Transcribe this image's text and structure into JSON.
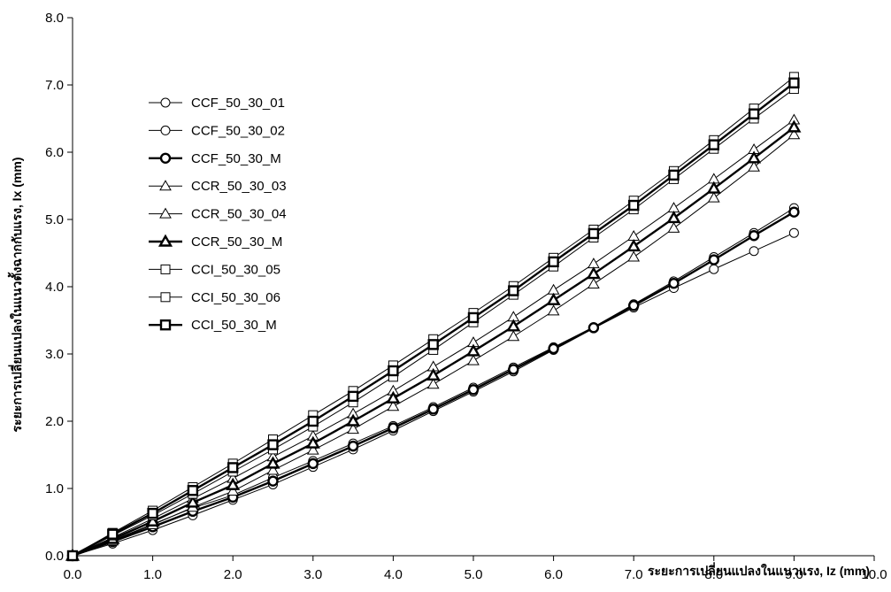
{
  "chart_data": {
    "type": "line",
    "title": "",
    "xlabel": "ระยะการเปลี่ยนแปลงในแนวแรง, Iz  (mm)",
    "ylabel": "ระยะการเปลี่ยนแปลงในแนวตั้งฉากกับแรง, Ix  (mm)",
    "xlim": [
      0,
      10
    ],
    "ylim": [
      0,
      8
    ],
    "x_ticks": [
      "0.0",
      "1.0",
      "2.0",
      "3.0",
      "4.0",
      "5.0",
      "6.0",
      "7.0",
      "8.0",
      "9.0",
      "10.0"
    ],
    "y_ticks": [
      "0.0",
      "1.0",
      "2.0",
      "3.0",
      "4.0",
      "5.0",
      "6.0",
      "7.0",
      "8.0"
    ],
    "grid": false,
    "legend_position": "upper-left",
    "x": [
      0,
      0.5,
      1.0,
      1.5,
      2.0,
      2.5,
      3.0,
      3.5,
      4.0,
      4.5,
      5.0,
      5.5,
      6.0,
      6.5,
      7.0,
      7.5,
      8.0,
      8.5,
      9.0
    ],
    "series": [
      {
        "name": "CCF_50_30_01",
        "marker": "circle",
        "bold": false,
        "values": [
          0,
          0.18,
          0.38,
          0.6,
          0.83,
          1.06,
          1.32,
          1.58,
          1.86,
          2.15,
          2.44,
          2.74,
          3.06,
          3.38,
          3.69,
          3.98,
          4.26,
          4.53,
          4.8
        ]
      },
      {
        "name": "CCF_50_30_02",
        "marker": "circle",
        "bold": false,
        "values": [
          0,
          0.23,
          0.47,
          0.71,
          0.9,
          1.16,
          1.41,
          1.67,
          1.93,
          2.21,
          2.5,
          2.8,
          3.1,
          3.4,
          3.74,
          4.08,
          4.44,
          4.8,
          5.17
        ]
      },
      {
        "name": "CCF_50_30_M",
        "marker": "circle",
        "bold": true,
        "values": [
          0,
          0.21,
          0.43,
          0.66,
          0.87,
          1.11,
          1.37,
          1.63,
          1.9,
          2.18,
          2.47,
          2.77,
          3.08,
          3.39,
          3.72,
          4.05,
          4.4,
          4.76,
          5.11
        ]
      },
      {
        "name": "CCR_50_30_03",
        "marker": "triangle",
        "bold": false,
        "values": [
          0,
          0.22,
          0.46,
          0.72,
          0.96,
          1.27,
          1.57,
          1.88,
          2.22,
          2.55,
          2.9,
          3.26,
          3.64,
          4.04,
          4.44,
          4.87,
          5.32,
          5.78,
          6.26
        ]
      },
      {
        "name": "CCR_50_30_04",
        "marker": "triangle",
        "bold": false,
        "values": [
          0,
          0.27,
          0.55,
          0.85,
          1.15,
          1.47,
          1.78,
          2.11,
          2.45,
          2.81,
          3.17,
          3.55,
          3.95,
          4.34,
          4.75,
          5.17,
          5.6,
          6.04,
          6.48
        ]
      },
      {
        "name": "CCR_50_30_M",
        "marker": "triangle",
        "bold": true,
        "values": [
          0,
          0.25,
          0.51,
          0.79,
          1.05,
          1.37,
          1.67,
          2.0,
          2.34,
          2.68,
          3.04,
          3.41,
          3.8,
          4.19,
          4.6,
          5.02,
          5.46,
          5.91,
          6.37
        ]
      },
      {
        "name": "CCI_50_30_05",
        "marker": "square",
        "bold": false,
        "values": [
          0,
          0.3,
          0.6,
          0.92,
          1.25,
          1.58,
          1.92,
          2.28,
          2.66,
          3.06,
          3.47,
          3.88,
          4.3,
          4.73,
          5.15,
          5.6,
          6.05,
          6.5,
          6.94
        ]
      },
      {
        "name": "CCI_50_30_06",
        "marker": "square",
        "bold": false,
        "values": [
          0,
          0.34,
          0.67,
          1.02,
          1.37,
          1.73,
          2.09,
          2.45,
          2.83,
          3.22,
          3.61,
          4.01,
          4.43,
          4.85,
          5.28,
          5.72,
          6.18,
          6.65,
          7.12
        ]
      },
      {
        "name": "CCI_50_30_M",
        "marker": "square",
        "bold": true,
        "values": [
          0,
          0.32,
          0.63,
          0.97,
          1.31,
          1.65,
          2.0,
          2.37,
          2.75,
          3.14,
          3.54,
          3.94,
          4.37,
          4.79,
          5.21,
          5.66,
          6.11,
          6.57,
          7.03
        ]
      }
    ]
  }
}
